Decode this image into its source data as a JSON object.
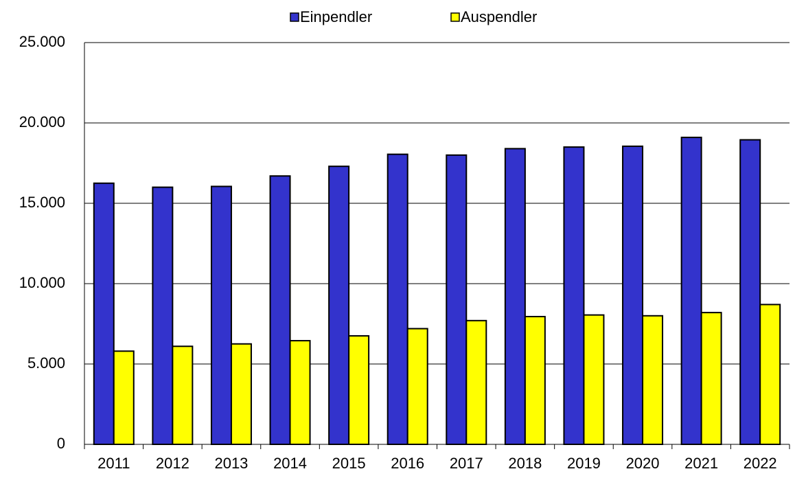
{
  "chart_data": {
    "type": "bar",
    "categories": [
      "2011",
      "2012",
      "2013",
      "2014",
      "2015",
      "2016",
      "2017",
      "2018",
      "2019",
      "2020",
      "2021",
      "2022"
    ],
    "series": [
      {
        "name": "Einpendler",
        "color": "#3333cc",
        "values": [
          16250,
          16000,
          16050,
          16700,
          17300,
          18050,
          18000,
          18400,
          18500,
          18550,
          19100,
          18950
        ]
      },
      {
        "name": "Auspendler",
        "color": "#ffff00",
        "values": [
          5800,
          6100,
          6250,
          6450,
          6750,
          7200,
          7700,
          7950,
          8050,
          8000,
          8200,
          8700
        ]
      }
    ],
    "ylim": [
      0,
      25000
    ],
    "yticks": [
      0,
      {
        "value": 5000,
        "label": "5.000"
      },
      {
        "value": 10000,
        "label": "10.000"
      },
      {
        "value": 15000,
        "label": "15.000"
      },
      {
        "value": 20000,
        "label": "20.000"
      },
      {
        "value": 25000,
        "label": "25.000"
      }
    ],
    "grid": true,
    "legend": "top"
  }
}
